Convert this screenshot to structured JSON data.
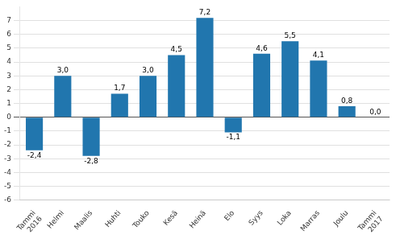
{
  "chart_data": {
    "type": "bar",
    "categories": [
      "Tammi",
      "Helmi",
      "Maalis",
      "Huhti",
      "Touko",
      "Kesä",
      "Heinä",
      "Elo",
      "Syys",
      "Loka",
      "Marras",
      "Joulu",
      "Tammi"
    ],
    "values": [
      -2.4,
      3.0,
      -2.8,
      1.7,
      3.0,
      4.5,
      7.2,
      -1.1,
      4.6,
      5.5,
      4.1,
      0.8,
      0.0
    ],
    "value_labels": [
      "-2,4",
      "3,0",
      "-2,8",
      "1,7",
      "3,0",
      "4,5",
      "7,2",
      "-1,1",
      "4,6",
      "5,5",
      "4,1",
      "0,8",
      "0,0"
    ],
    "data_labels": true,
    "color": "#2176ae",
    "ylim": [
      -6,
      8
    ],
    "yticks": [
      -6,
      -5,
      -4,
      -3,
      -2,
      -1,
      0,
      1,
      2,
      3,
      4,
      5,
      6,
      7
    ],
    "grid": true,
    "annotations": [
      {
        "text": "2016",
        "category": 0
      },
      {
        "text": "2017",
        "category": 12
      }
    ]
  }
}
